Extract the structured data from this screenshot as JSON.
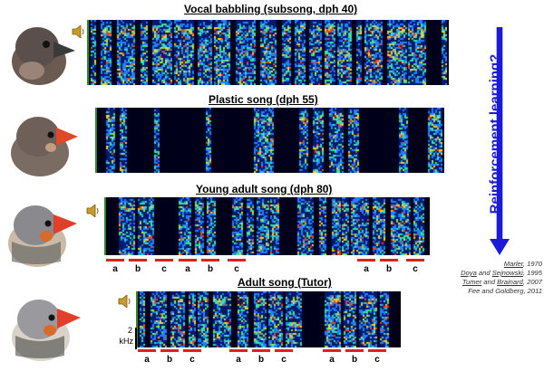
{
  "panels": [
    {
      "title": "Vocal babbling (subsong, dph 40)",
      "bird": "juvenile-gray",
      "segments": []
    },
    {
      "title": "Plastic song (dph 55)",
      "bird": "young-orange-beak",
      "segments": []
    },
    {
      "title": "Young adult song (dph 80)",
      "bird": "young-adult-male",
      "segments": [
        "a",
        "b",
        "c",
        "a",
        "b",
        "c",
        "a",
        "b",
        "c"
      ]
    },
    {
      "title": "Adult song (Tutor)",
      "bird": "adult-male",
      "segments": [
        "a",
        "b",
        "c",
        "a",
        "b",
        "c",
        "a",
        "b",
        "c"
      ]
    }
  ],
  "arrow_label": "Reinforcement learning?",
  "references": [
    {
      "author": "Marler",
      "rest": ", 1970"
    },
    {
      "author": "Doya",
      "mid": " and ",
      "author2": "Sejnowski",
      "rest": ", 1995"
    },
    {
      "author": "Tumer",
      "mid": " and ",
      "author2": "Brainard",
      "rest": ", 2007"
    },
    {
      "author": "Fee and Goldberg",
      "rest": ", 2011"
    }
  ],
  "scale_bar": {
    "value": "2",
    "unit": "kHz"
  },
  "colors": {
    "arrow": "#1a1ad8",
    "segment": "#e0201c"
  }
}
